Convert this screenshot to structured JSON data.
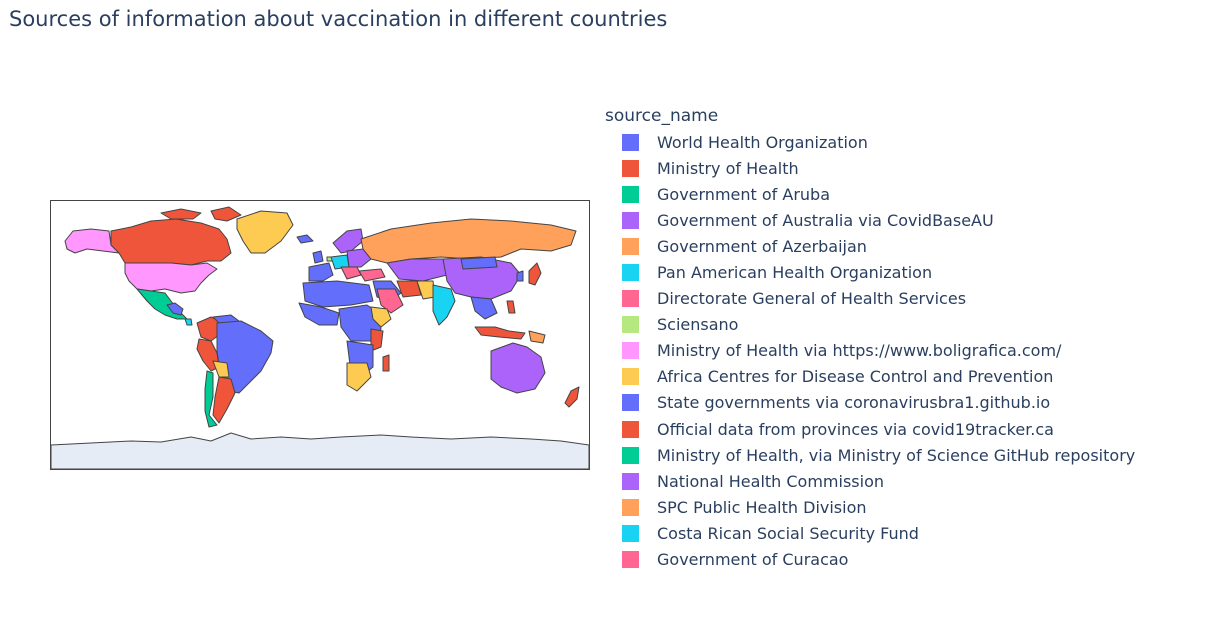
{
  "title": "Sources of information about vaccination in different countries",
  "legend": {
    "title": "source_name",
    "items": [
      {
        "label": "World Health Organization",
        "color": "#636efa"
      },
      {
        "label": "Ministry of Health",
        "color": "#ef553b"
      },
      {
        "label": "Government of Aruba",
        "color": "#00cc96"
      },
      {
        "label": "Government of Australia via CovidBaseAU",
        "color": "#ab63fa"
      },
      {
        "label": "Government of Azerbaijan",
        "color": "#ffa15a"
      },
      {
        "label": "Pan American Health Organization",
        "color": "#19d3f3"
      },
      {
        "label": "Directorate General of Health Services",
        "color": "#ff6692"
      },
      {
        "label": "Sciensano",
        "color": "#b6e880"
      },
      {
        "label": "Ministry of Health via https://www.boligrafica.com/",
        "color": "#ff97ff"
      },
      {
        "label": "Africa Centres for Disease Control and Prevention",
        "color": "#fecb52"
      },
      {
        "label": "State governments via coronavirusbra1.github.io",
        "color": "#636efa"
      },
      {
        "label": "Official data from provinces via covid19tracker.ca",
        "color": "#ef553b"
      },
      {
        "label": "Ministry of Health, via Ministry of Science GitHub repository",
        "color": "#00cc96"
      },
      {
        "label": "National Health Commission",
        "color": "#ab63fa"
      },
      {
        "label": "SPC Public Health Division",
        "color": "#ffa15a"
      },
      {
        "label": "Costa Rican Social Security Fund",
        "color": "#19d3f3"
      },
      {
        "label": "Government of Curacao",
        "color": "#ff6692"
      }
    ]
  },
  "map": {
    "projection": "equirectangular",
    "frame_color": "#444444",
    "country_border_color": "#444444",
    "antarctica_color": "#e5ecf6"
  }
}
